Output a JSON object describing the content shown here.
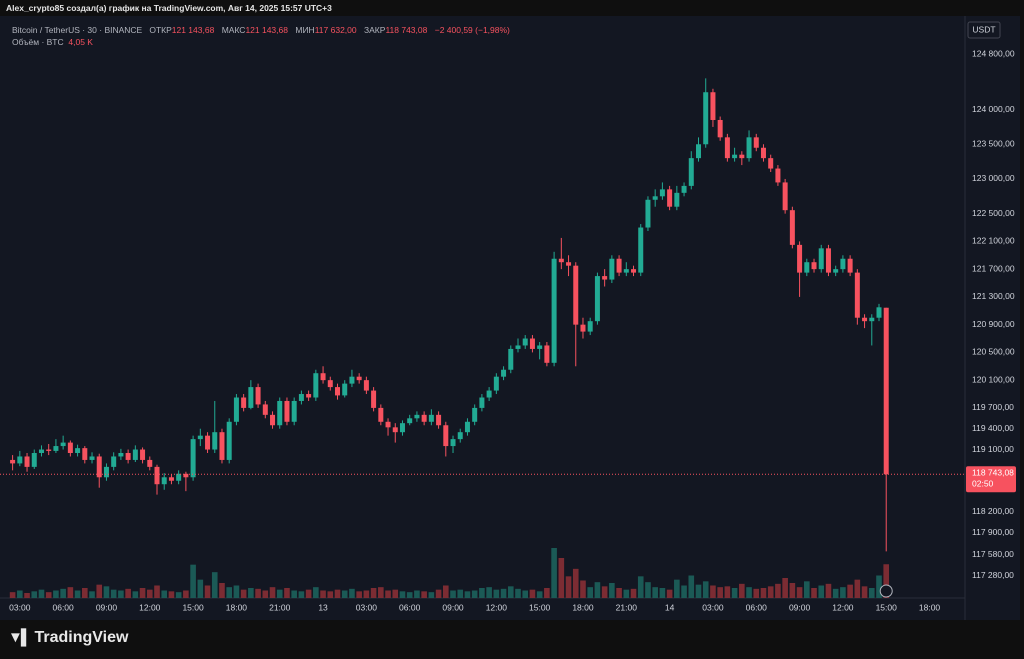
{
  "page_header": "Alex_crypto85 создал(а) график на TradingView.com, Авг 14, 2025 15:57 UTC+3",
  "brand": "TradingView",
  "chart_data": {
    "type": "candlestick",
    "symbol": "Bitcoin / TetherUS · 30 · BINANCE",
    "legend": {
      "open_label": "ОТКР",
      "open": "121 143,68",
      "high_label": "МАКС",
      "high": "121 143,68",
      "low_label": "МИН",
      "low": "117 632,00",
      "close_label": "ЗАКР",
      "close": "118 743,08",
      "change": "−2 400,59 (−1,98%)"
    },
    "currency": "USDT",
    "price_tag": "118 743,08",
    "countdown": "02:50",
    "up_color": "#22ab94",
    "down_color": "#f7525f",
    "up_volume_color": "#1b5a56",
    "down_volume_color": "#7c2c33",
    "ylim": [
      116960,
      125320
    ],
    "yticks": [
      {
        "value": 124800,
        "label": "124 800,00"
      },
      {
        "value": 124000,
        "label": "124 000,00"
      },
      {
        "value": 123500,
        "label": "123 500,00"
      },
      {
        "value": 123000,
        "label": "123 000,00"
      },
      {
        "value": 122500,
        "label": "122 500,00"
      },
      {
        "value": 122100,
        "label": "122 100,00"
      },
      {
        "value": 121700,
        "label": "121 700,00"
      },
      {
        "value": 121300,
        "label": "121 300,00"
      },
      {
        "value": 120900,
        "label": "120 900,00"
      },
      {
        "value": 120500,
        "label": "120 500,00"
      },
      {
        "value": 120100,
        "label": "120 100,00"
      },
      {
        "value": 119700,
        "label": "119 700,00"
      },
      {
        "value": 119400,
        "label": "119 400,00"
      },
      {
        "value": 119100,
        "label": "119 100,00"
      },
      {
        "value": 118200,
        "label": "118 200,00"
      },
      {
        "value": 117900,
        "label": "117 900,00"
      },
      {
        "value": 117580,
        "label": "117 580,00"
      },
      {
        "value": 117280,
        "label": "117 280,00"
      }
    ],
    "grid": false,
    "categories": [
      null,
      "03:00",
      null,
      null,
      null,
      null,
      null,
      "06:00",
      null,
      null,
      null,
      null,
      null,
      "09:00",
      null,
      null,
      null,
      null,
      null,
      "12:00",
      null,
      null,
      null,
      null,
      null,
      "15:00",
      null,
      null,
      null,
      null,
      null,
      "18:00",
      null,
      null,
      null,
      null,
      null,
      "21:00",
      null,
      null,
      null,
      null,
      null,
      "13",
      null,
      null,
      null,
      null,
      null,
      "03:00",
      null,
      null,
      null,
      null,
      null,
      "06:00",
      null,
      null,
      null,
      null,
      null,
      "09:00",
      null,
      null,
      null,
      null,
      null,
      "12:00",
      null,
      null,
      null,
      null,
      null,
      "15:00",
      null,
      null,
      null,
      null,
      null,
      "18:00",
      null,
      null,
      null,
      null,
      null,
      "21:00",
      null,
      null,
      null,
      null,
      null,
      "14",
      null,
      null,
      null,
      null,
      null,
      "03:00",
      null,
      null,
      null,
      null,
      null,
      "06:00",
      null,
      null,
      null,
      null,
      null,
      "09:00",
      null,
      null,
      null,
      null,
      null,
      "12:00",
      null,
      null,
      null,
      null,
      null,
      "15:00",
      null,
      null,
      null,
      null,
      null,
      "18:00"
    ],
    "candles": [
      [
        118950,
        119020,
        118800,
        118900
      ],
      [
        118900,
        119080,
        118860,
        119000
      ],
      [
        119000,
        119050,
        118780,
        118850
      ],
      [
        118850,
        119100,
        118820,
        119050
      ],
      [
        119050,
        119160,
        119000,
        119100
      ],
      [
        119100,
        119180,
        119020,
        119080
      ],
      [
        119080,
        119250,
        119050,
        119150
      ],
      [
        119150,
        119300,
        119100,
        119200
      ],
      [
        119200,
        119230,
        119000,
        119050
      ],
      [
        119050,
        119170,
        119000,
        119120
      ],
      [
        119120,
        119150,
        118900,
        118950
      ],
      [
        118950,
        119060,
        118900,
        119000
      ],
      [
        119000,
        119040,
        118550,
        118700
      ],
      [
        118700,
        118900,
        118650,
        118850
      ],
      [
        118850,
        119060,
        118800,
        119000
      ],
      [
        119000,
        119110,
        118950,
        119050
      ],
      [
        119050,
        119100,
        118900,
        118950
      ],
      [
        118950,
        119160,
        118920,
        119100
      ],
      [
        119100,
        119130,
        118900,
        118950
      ],
      [
        118950,
        119000,
        118800,
        118850
      ],
      [
        118850,
        118880,
        118450,
        118600
      ],
      [
        118600,
        118760,
        118520,
        118700
      ],
      [
        118700,
        118740,
        118600,
        118650
      ],
      [
        118650,
        118800,
        118600,
        118750
      ],
      [
        118750,
        118780,
        118500,
        118700
      ],
      [
        118700,
        119300,
        118650,
        119250
      ],
      [
        119250,
        119400,
        119150,
        119300
      ],
      [
        119300,
        119350,
        119050,
        119100
      ],
      [
        119100,
        119800,
        119050,
        119350
      ],
      [
        119350,
        119400,
        118900,
        118950
      ],
      [
        118950,
        119550,
        118900,
        119500
      ],
      [
        119500,
        119900,
        119450,
        119850
      ],
      [
        119850,
        119900,
        119650,
        119700
      ],
      [
        119700,
        120100,
        119680,
        120000
      ],
      [
        120000,
        120050,
        119700,
        119750
      ],
      [
        119750,
        119800,
        119550,
        119600
      ],
      [
        119600,
        119650,
        119400,
        119450
      ],
      [
        119450,
        119850,
        119400,
        119800
      ],
      [
        119800,
        119850,
        119450,
        119500
      ],
      [
        119500,
        119850,
        119450,
        119800
      ],
      [
        119800,
        119950,
        119750,
        119900
      ],
      [
        119900,
        119950,
        119800,
        119850
      ],
      [
        119850,
        120250,
        119800,
        120200
      ],
      [
        120200,
        120300,
        120050,
        120100
      ],
      [
        120100,
        120150,
        119950,
        120000
      ],
      [
        120000,
        120050,
        119820,
        119880
      ],
      [
        119880,
        120100,
        119850,
        120050
      ],
      [
        120050,
        120250,
        120000,
        120150
      ],
      [
        120150,
        120200,
        120050,
        120100
      ],
      [
        120100,
        120150,
        119900,
        119950
      ],
      [
        119950,
        120000,
        119650,
        119700
      ],
      [
        119700,
        119750,
        119450,
        119500
      ],
      [
        119500,
        119550,
        119300,
        119420
      ],
      [
        119420,
        119480,
        119200,
        119350
      ],
      [
        119350,
        119520,
        119300,
        119480
      ],
      [
        119480,
        119600,
        119450,
        119550
      ],
      [
        119550,
        119650,
        119500,
        119600
      ],
      [
        119600,
        119650,
        119450,
        119500
      ],
      [
        119500,
        119680,
        119450,
        119600
      ],
      [
        119600,
        119650,
        119400,
        119450
      ],
      [
        119450,
        119500,
        119000,
        119150
      ],
      [
        119150,
        119300,
        119050,
        119250
      ],
      [
        119250,
        119400,
        119200,
        119350
      ],
      [
        119350,
        119550,
        119300,
        119500
      ],
      [
        119500,
        119750,
        119450,
        119700
      ],
      [
        119700,
        119900,
        119650,
        119850
      ],
      [
        119850,
        120000,
        119800,
        119950
      ],
      [
        119950,
        120200,
        119900,
        120150
      ],
      [
        120150,
        120300,
        120100,
        120250
      ],
      [
        120250,
        120600,
        120200,
        120550
      ],
      [
        120550,
        120700,
        120500,
        120600
      ],
      [
        120600,
        120750,
        120550,
        120700
      ],
      [
        120700,
        120750,
        120500,
        120550
      ],
      [
        120550,
        120650,
        120400,
        120600
      ],
      [
        120600,
        120650,
        120300,
        120350
      ],
      [
        120350,
        121950,
        120300,
        121850
      ],
      [
        121850,
        122150,
        121700,
        121800
      ],
      [
        121800,
        121900,
        121600,
        121750
      ],
      [
        121750,
        121800,
        120300,
        120900
      ],
      [
        120900,
        121000,
        120700,
        120800
      ],
      [
        120800,
        121000,
        120750,
        120950
      ],
      [
        120950,
        121650,
        120900,
        121600
      ],
      [
        121600,
        121700,
        121450,
        121550
      ],
      [
        121550,
        121900,
        121500,
        121850
      ],
      [
        121850,
        121900,
        121600,
        121650
      ],
      [
        121650,
        121800,
        121600,
        121700
      ],
      [
        121700,
        121750,
        121600,
        121650
      ],
      [
        121650,
        122350,
        121600,
        122300
      ],
      [
        122300,
        122750,
        122250,
        122700
      ],
      [
        122700,
        122850,
        122600,
        122750
      ],
      [
        122750,
        122950,
        122700,
        122850
      ],
      [
        122850,
        122900,
        122550,
        122600
      ],
      [
        122600,
        122900,
        122550,
        122800
      ],
      [
        122800,
        122950,
        122750,
        122900
      ],
      [
        122900,
        123400,
        122850,
        123300
      ],
      [
        123300,
        123600,
        123250,
        123500
      ],
      [
        123500,
        124450,
        123450,
        124250
      ],
      [
        124250,
        124300,
        123750,
        123850
      ],
      [
        123850,
        123900,
        123550,
        123600
      ],
      [
        123600,
        123650,
        123250,
        123300
      ],
      [
        123300,
        123450,
        123250,
        123350
      ],
      [
        123350,
        123400,
        123200,
        123300
      ],
      [
        123300,
        123700,
        123250,
        123600
      ],
      [
        123600,
        123650,
        123400,
        123450
      ],
      [
        123450,
        123500,
        123250,
        123300
      ],
      [
        123300,
        123350,
        123100,
        123150
      ],
      [
        123150,
        123200,
        122900,
        122950
      ],
      [
        122950,
        123000,
        122500,
        122550
      ],
      [
        122550,
        122600,
        122000,
        122050
      ],
      [
        122050,
        122100,
        121300,
        121650
      ],
      [
        121650,
        121850,
        121600,
        121800
      ],
      [
        121800,
        121850,
        121650,
        121700
      ],
      [
        121700,
        122050,
        121650,
        122000
      ],
      [
        122000,
        122050,
        121600,
        121650
      ],
      [
        121650,
        121750,
        121600,
        121700
      ],
      [
        121700,
        121900,
        121650,
        121850
      ],
      [
        121850,
        121900,
        121600,
        121650
      ],
      [
        121650,
        121700,
        120900,
        121000
      ],
      [
        121000,
        121050,
        120850,
        120950
      ],
      [
        120950,
        121050,
        120600,
        121000
      ],
      [
        121000,
        121200,
        120950,
        121150
      ],
      [
        121143.68,
        121143.68,
        117632,
        118743.08
      ],
      null,
      null,
      null,
      null,
      null,
      null
    ],
    "volume": {
      "name": "Объём · BTC",
      "last_label": "4,05 K",
      "vlim": [
        0,
        12000
      ],
      "values": [
        700,
        900,
        600,
        800,
        1000,
        700,
        900,
        1100,
        1300,
        900,
        1200,
        800,
        1600,
        1400,
        1000,
        900,
        1100,
        800,
        1200,
        1000,
        1500,
        900,
        800,
        700,
        900,
        4000,
        2200,
        1500,
        3100,
        1800,
        1300,
        1500,
        1000,
        1200,
        1100,
        900,
        1300,
        1000,
        1200,
        900,
        800,
        1000,
        1300,
        900,
        800,
        1000,
        900,
        1100,
        800,
        900,
        1200,
        1300,
        900,
        1000,
        800,
        700,
        900,
        800,
        700,
        1000,
        1500,
        900,
        1000,
        800,
        900,
        1200,
        1300,
        1000,
        1100,
        1400,
        1100,
        900,
        1000,
        800,
        1200,
        6000,
        4800,
        2600,
        3500,
        2100,
        1300,
        1900,
        1400,
        1800,
        1200,
        1000,
        1100,
        2600,
        1900,
        1300,
        1200,
        1000,
        2200,
        1500,
        2700,
        1600,
        2000,
        1500,
        1300,
        1400,
        1200,
        1700,
        1300,
        1100,
        1200,
        1400,
        1700,
        2400,
        1800,
        1300,
        2000,
        1200,
        1500,
        1700,
        1100,
        1300,
        1600,
        2200,
        1400,
        1200,
        2700,
        4050,
        null,
        null,
        null,
        null,
        null,
        null
      ]
    }
  }
}
